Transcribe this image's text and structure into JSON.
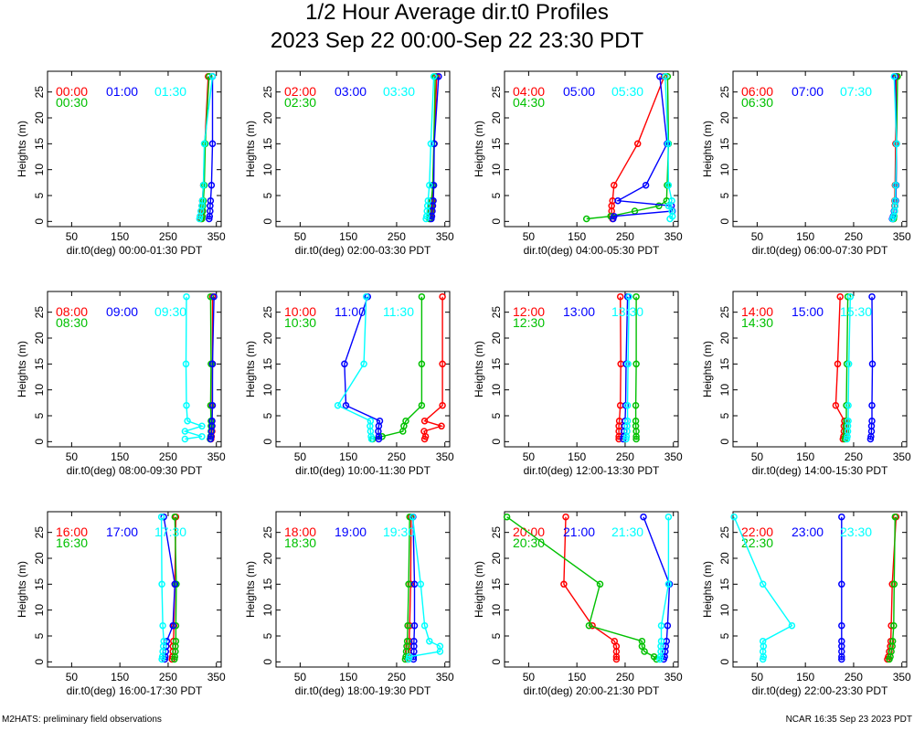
{
  "title": "1/2 Hour Average dir.t0 Profiles",
  "subtitle": "2023 Sep 22 00:00-Sep 22 23:30 PDT",
  "footer": {
    "left": "M2HATS: preliminary field observations",
    "right": "NCAR 16:35 Sep 23 2023 PDT"
  },
  "colors": {
    "red": "#ff0000",
    "green": "#00c000",
    "blue": "#0000ff",
    "cyan": "#00ffff"
  },
  "chart_data": {
    "type": "line",
    "ylabel": "Heights (m)",
    "xlim": [
      0,
      360
    ],
    "ylim": [
      -1,
      29
    ],
    "xticks": [
      50,
      150,
      250,
      350
    ],
    "yticks": [
      0,
      5,
      10,
      15,
      20,
      25
    ],
    "heights": [
      0.5,
      1,
      2,
      3,
      4,
      7,
      15,
      28
    ],
    "panels": [
      {
        "xlabel": "dir.t0(deg) 00:00-01:30 PDT",
        "series": [
          {
            "name": "00:00",
            "color": "red",
            "x": [
              318,
              318,
              319,
              320,
              321,
              323,
              326,
              333
            ]
          },
          {
            "name": "00:30",
            "color": "green",
            "x": [
              320,
              321,
              322,
              322,
              323,
              325,
              327,
              335
            ]
          },
          {
            "name": "01:00",
            "color": "blue",
            "x": [
              335,
              336,
              337,
              337,
              338,
              340,
              342,
              342
            ]
          },
          {
            "name": "01:30",
            "color": "cyan",
            "x": [
              315,
              316,
              318,
              320,
              321,
              323,
              325,
              342
            ]
          }
        ]
      },
      {
        "xlabel": "dir.t0(deg) 02:00-03:30 PDT",
        "series": [
          {
            "name": "02:00",
            "color": "red",
            "x": [
              320,
              321,
              322,
              323,
              324,
              325,
              328,
              333
            ]
          },
          {
            "name": "02:30",
            "color": "green",
            "x": [
              318,
              319,
              320,
              321,
              322,
              325,
              327,
              330
            ]
          },
          {
            "name": "03:00",
            "color": "blue",
            "x": [
              322,
              323,
              324,
              325,
              326,
              327,
              328,
              337
            ]
          },
          {
            "name": "03:30",
            "color": "cyan",
            "x": [
              311,
              312,
              313,
              314,
              315,
              318,
              321,
              327
            ]
          }
        ]
      },
      {
        "xlabel": "dir.t0(deg) 04:00-05:30 PDT",
        "series": [
          {
            "name": "04:00",
            "color": "red",
            "x": [
              224,
              222,
              222,
              222,
              224,
              227,
              276,
              331
            ]
          },
          {
            "name": "04:30",
            "color": "green",
            "x": [
              170,
              220,
              270,
              320,
              336,
              337,
              340,
              338
            ]
          },
          {
            "name": "05:00",
            "color": "blue",
            "x": [
              225,
              227,
              348,
              346,
              235,
              293,
              337,
              322
            ]
          },
          {
            "name": "05:30",
            "color": "cyan",
            "x": [
              343,
              348,
              347,
              340,
              347,
              340,
              339,
              333
            ]
          }
        ]
      },
      {
        "xlabel": "dir.t0(deg) 06:00-07:30 PDT",
        "series": [
          {
            "name": "06:00",
            "color": "red",
            "x": [
              332,
              333,
              334,
              335,
              335,
              336,
              337,
              338
            ]
          },
          {
            "name": "06:30",
            "color": "green",
            "x": [
              333,
              334,
              335,
              336,
              337,
              338,
              339,
              341
            ]
          },
          {
            "name": "07:00",
            "color": "blue",
            "x": [
              330,
              332,
              334,
              336,
              337,
              338,
              339,
              336
            ]
          },
          {
            "name": "07:30",
            "color": "cyan",
            "x": [
              331,
              333,
              335,
              336,
              336,
              337,
              339,
              334
            ]
          }
        ]
      },
      {
        "xlabel": "dir.t0(deg) 08:00-09:30 PDT",
        "series": [
          {
            "name": "08:00",
            "color": "red",
            "x": [
              339,
              340,
              341,
              341,
              341,
              341,
              342,
              342
            ]
          },
          {
            "name": "08:30",
            "color": "green",
            "x": [
              337,
              338,
              339,
              339,
              339,
              338,
              339,
              338
            ]
          },
          {
            "name": "09:00",
            "color": "blue",
            "x": [
              338,
              339,
              340,
              341,
              341,
              342,
              342,
              345
            ]
          },
          {
            "name": "09:30",
            "color": "cyan",
            "x": [
              285,
              320,
              285,
              320,
              290,
              288,
              287,
              288
            ]
          }
        ]
      },
      {
        "xlabel": "dir.t0(deg) 10:00-11:30 PDT",
        "series": [
          {
            "name": "10:00",
            "color": "red",
            "x": [
              308,
              310,
              307,
              343,
              308,
              345,
              345,
              345
            ]
          },
          {
            "name": "10:30",
            "color": "green",
            "x": [
              200,
              220,
              263,
              265,
              269,
              302,
              302,
              302
            ]
          },
          {
            "name": "11:00",
            "color": "blue",
            "x": [
              213,
              213,
              212,
              213,
              215,
              145,
              142,
              190
            ]
          },
          {
            "name": "11:30",
            "color": "cyan",
            "x": [
              198,
              197,
              196,
              195,
              196,
              128,
              182,
              187
            ]
          }
        ]
      },
      {
        "xlabel": "dir.t0(deg) 12:00-13:30 PDT",
        "series": [
          {
            "name": "12:00",
            "color": "red",
            "x": [
              237,
              237,
              237,
              237,
              238,
              240,
              241,
              240
            ]
          },
          {
            "name": "12:30",
            "color": "green",
            "x": [
              273,
              273,
              273,
              272,
              272,
              272,
              273,
              273
            ]
          },
          {
            "name": "13:00",
            "color": "blue",
            "x": [
              246,
              247,
              248,
              249,
              250,
              251,
              252,
              255
            ]
          },
          {
            "name": "13:30",
            "color": "cyan",
            "x": [
              252,
              253,
              254,
              254,
              255,
              255,
              256,
              258
            ]
          }
        ]
      },
      {
        "xlabel": "dir.t0(deg) 14:00-15:30 PDT",
        "series": [
          {
            "name": "14:00",
            "color": "red",
            "x": [
              228,
              229,
              230,
              230,
              231,
              213,
              217,
              222
            ]
          },
          {
            "name": "14:30",
            "color": "green",
            "x": [
              232,
              233,
              234,
              234,
              235,
              235,
              236,
              238
            ]
          },
          {
            "name": "15:00",
            "color": "blue",
            "x": [
              285,
              286,
              287,
              287,
              288,
              288,
              289,
              288
            ]
          },
          {
            "name": "15:30",
            "color": "cyan",
            "x": [
              236,
              237,
              238,
              238,
              239,
              239,
              240,
              243
            ]
          }
        ]
      },
      {
        "xlabel": "dir.t0(deg) 16:00-17:30 PDT",
        "series": [
          {
            "name": "16:00",
            "color": "red",
            "x": [
              258,
              259,
              260,
              260,
              261,
              262,
              264,
              266
            ]
          },
          {
            "name": "16:30",
            "color": "green",
            "x": [
              263,
              264,
              265,
              265,
              266,
              266,
              267,
              264
            ]
          },
          {
            "name": "17:00",
            "color": "blue",
            "x": [
              243,
              244,
              245,
              246,
              247,
              260,
              264,
              241
            ]
          },
          {
            "name": "17:30",
            "color": "cyan",
            "x": [
              237,
              238,
              239,
              240,
              241,
              239,
              237,
              236
            ]
          }
        ]
      },
      {
        "xlabel": "dir.t0(deg) 18:00-19:30 PDT",
        "series": [
          {
            "name": "18:00",
            "color": "red",
            "x": [
              273,
              274,
              274,
              275,
              276,
              277,
              279,
              280
            ]
          },
          {
            "name": "18:30",
            "color": "green",
            "x": [
              268,
              269,
              270,
              271,
              272,
              273,
              275,
              277
            ]
          },
          {
            "name": "19:00",
            "color": "blue",
            "x": [
              285,
              285,
              286,
              286,
              286,
              287,
              287,
              284
            ]
          },
          {
            "name": "19:30",
            "color": "cyan",
            "x": [
              275,
              276,
              340,
              340,
              318,
              308,
              300,
              283
            ]
          }
        ]
      },
      {
        "xlabel": "dir.t0(deg) 20:00-21:30 PDT",
        "series": [
          {
            "name": "20:00",
            "color": "red",
            "x": [
              232,
              232,
              232,
              232,
              228,
              182,
              123,
              127
            ]
          },
          {
            "name": "20:30",
            "color": "green",
            "x": [
              315,
              310,
              290,
              285,
              285,
              175,
              198,
              5
            ]
          },
          {
            "name": "21:00",
            "color": "blue",
            "x": [
              330,
              332,
              333,
              334,
              336,
              338,
              342,
              288
            ]
          },
          {
            "name": "21:30",
            "color": "cyan",
            "x": [
              322,
              323,
              324,
              324,
              325,
              325,
              340,
              340
            ]
          }
        ]
      },
      {
        "xlabel": "dir.t0(deg) 22:00-23:30 PDT",
        "series": [
          {
            "name": "22:00",
            "color": "red",
            "x": [
              320,
              322,
              324,
              326,
              327,
              328,
              330,
              338
            ]
          },
          {
            "name": "22:30",
            "color": "green",
            "x": [
              324,
              326,
              328,
              330,
              331,
              333,
              334,
              336
            ]
          },
          {
            "name": "23:00",
            "color": "blue",
            "x": [
              225,
              225,
              225,
              225,
              225,
              225,
              225,
              225
            ]
          },
          {
            "name": "23:30",
            "color": "cyan",
            "x": [
              62,
              63,
              62,
              63,
              62,
              122,
              62,
              2
            ]
          }
        ]
      }
    ]
  }
}
